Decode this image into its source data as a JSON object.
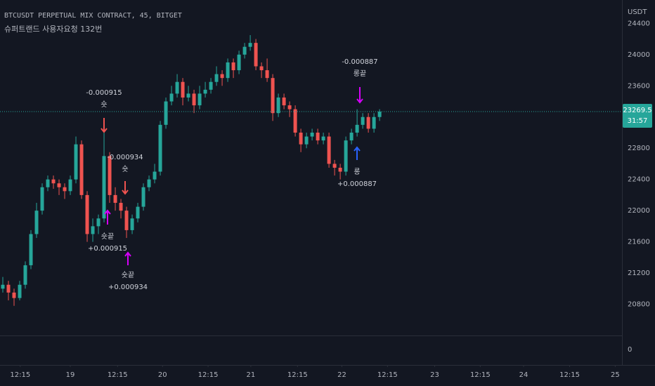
{
  "chart_data": {
    "type": "candlestick",
    "title": "BTCUSDT PERPETUAL MIX CONTRACT, 45, BITGET",
    "subtitle": "슈퍼트랜드 사용자요청 132번",
    "y_axis_label": "USDT",
    "up_color": "#26a69a",
    "down_color": "#ef5350",
    "open": [
      21000,
      21050,
      20950,
      20880,
      21050,
      21300,
      21700,
      22000,
      22300,
      22400,
      22350,
      22300,
      22250,
      22400,
      22850,
      22200,
      21700,
      21800,
      21900,
      22700,
      22200,
      22100,
      22000,
      21750,
      21900,
      22050,
      22300,
      22400,
      22500,
      23100,
      23400,
      23500,
      23650,
      23450,
      23500,
      23350,
      23500,
      23550,
      23650,
      23750,
      23700,
      23900,
      23800,
      24000,
      24100,
      24150,
      23850,
      23800,
      23700,
      23250,
      23450,
      23350,
      23300,
      23000,
      22850,
      22950,
      23000,
      22900,
      22950,
      22600,
      22550,
      22500,
      22900,
      23000,
      23100,
      23200,
      23050,
      23200
    ],
    "high": [
      21150,
      21100,
      21000,
      21100,
      21350,
      21750,
      22100,
      22350,
      22450,
      22450,
      22400,
      22350,
      22450,
      22950,
      22900,
      22250,
      21900,
      21950,
      23000,
      22750,
      22300,
      22150,
      22050,
      21950,
      22100,
      22350,
      22450,
      22600,
      23150,
      23450,
      23600,
      23750,
      23700,
      23600,
      23550,
      23600,
      23650,
      23700,
      23850,
      23800,
      23950,
      23950,
      24050,
      24150,
      24250,
      24200,
      23900,
      23950,
      23750,
      23500,
      23500,
      23400,
      23350,
      23050,
      23000,
      23050,
      23050,
      23000,
      23000,
      22650,
      22600,
      22950,
      23050,
      23300,
      23250,
      23250,
      23250,
      23300
    ],
    "low": [
      20950,
      20850,
      20780,
      20850,
      21000,
      21250,
      21650,
      21950,
      22250,
      22280,
      22200,
      22150,
      22200,
      22350,
      22150,
      21600,
      21600,
      21700,
      21850,
      22100,
      22000,
      21900,
      21650,
      21700,
      21850,
      22000,
      22250,
      22350,
      22450,
      23050,
      23350,
      23450,
      23350,
      23400,
      23250,
      23300,
      23450,
      23500,
      23600,
      23600,
      23650,
      23700,
      23750,
      23950,
      24050,
      23800,
      23700,
      23650,
      23150,
      23200,
      23300,
      23200,
      22950,
      22750,
      22800,
      22900,
      22850,
      22850,
      22550,
      22450,
      22400,
      22450,
      22850,
      22950,
      23050,
      23000,
      23000,
      23150
    ],
    "close": [
      21050,
      20950,
      20880,
      21050,
      21300,
      21700,
      22000,
      22300,
      22400,
      22350,
      22300,
      22250,
      22400,
      22850,
      22200,
      21700,
      21800,
      21900,
      22700,
      22200,
      22100,
      22000,
      21750,
      21900,
      22050,
      22300,
      22400,
      22500,
      23100,
      23400,
      23500,
      23650,
      23450,
      23500,
      23350,
      23500,
      23550,
      23650,
      23750,
      23700,
      23900,
      23800,
      24000,
      24100,
      24150,
      23850,
      23800,
      23700,
      23250,
      23450,
      23350,
      23300,
      23000,
      22850,
      22950,
      23000,
      22900,
      22950,
      22600,
      22550,
      22500,
      22900,
      23000,
      23100,
      23200,
      23050,
      23200,
      23269.5
    ],
    "xlim": [
      -0.5,
      110.1
    ],
    "xticks": [
      {
        "value": 3.1,
        "label": "12:15"
      },
      {
        "value": 12,
        "label": "19"
      },
      {
        "value": 20.4,
        "label": "12:15"
      },
      {
        "value": 28.4,
        "label": "20"
      },
      {
        "value": 36.5,
        "label": "12:15"
      },
      {
        "value": 44.1,
        "label": "21"
      },
      {
        "value": 52.4,
        "label": "12:15"
      },
      {
        "value": 60.3,
        "label": "22"
      },
      {
        "value": 68.4,
        "label": "12:15"
      },
      {
        "value": 76.8,
        "label": "23"
      },
      {
        "value": 84.9,
        "label": "12:15"
      },
      {
        "value": 92.6,
        "label": "24"
      },
      {
        "value": 100.8,
        "label": "12:15"
      },
      {
        "value": 108.9,
        "label": "25"
      }
    ],
    "ylim": [
      20400,
      24700
    ],
    "yticks": [
      20800,
      21200,
      21600,
      22000,
      22400,
      22800,
      23600,
      24000,
      24400
    ],
    "grid": false,
    "last_price": 23269.5,
    "countdown": "31:57",
    "pane2_yticks": [
      0
    ],
    "annotations": [
      {
        "lines": [
          "-0.000915",
          "숏"
        ]
      },
      {
        "lines": [
          "-0.000934",
          "숏"
        ]
      },
      {
        "lines": [
          "숏끝",
          "+0.000915"
        ]
      },
      {
        "lines": [
          "숏끝",
          "+0.000934"
        ]
      },
      {
        "lines": [
          "-0.000887",
          "롱끝"
        ]
      },
      {
        "lines": [
          "롱",
          "+0.000887"
        ]
      }
    ]
  }
}
